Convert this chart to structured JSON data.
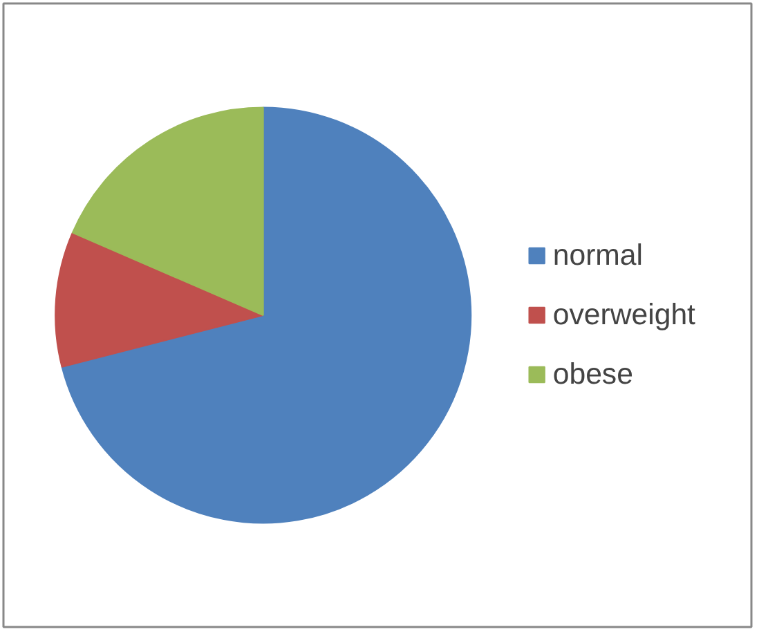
{
  "chart_data": {
    "type": "pie",
    "categories": [
      "normal",
      "overweight",
      "obese"
    ],
    "values": [
      71,
      10.5,
      18.5
    ],
    "colors": [
      "#4f81bd",
      "#c0504d",
      "#9bbb59"
    ],
    "legend": "right"
  }
}
